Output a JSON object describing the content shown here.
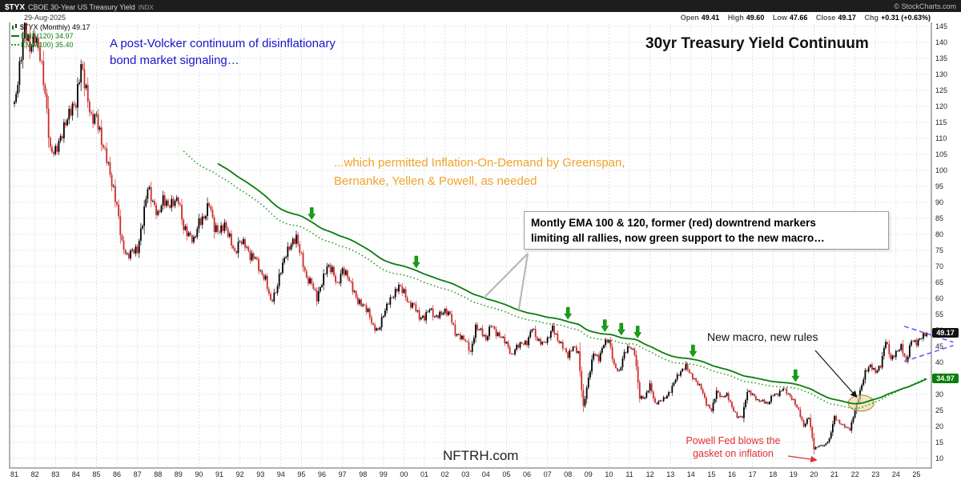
{
  "header": {
    "symbol": "$TYX",
    "symbol_desc": "CBOE 30-Year US Treasury Yield",
    "exchange": "INDX",
    "copyright": "© StockCharts.com",
    "date": "29-Aug-2025",
    "quote": {
      "open_label": "Open",
      "open": "49.41",
      "high_label": "High",
      "high": "49.60",
      "low_label": "Low",
      "low": "47.66",
      "close_label": "Close",
      "close": "49.17",
      "chg_label": "Chg",
      "chg": "+0.31 (+0.63%)"
    }
  },
  "legend": {
    "series": "$TYX (Monthly) 49.17",
    "ema120": "EMA(120) 34.97",
    "ema100": "EMA(100) 35.40"
  },
  "title": "30yr Treasury Yield Continuum",
  "annotations": {
    "blue_line1": "A post-Volcker continuum of disinflationary",
    "blue_line2": "bond market signaling…",
    "orange_line1": "...which permitted Inflation-On-Demand by Greenspan,",
    "orange_line2": "Bernanke, Yellen & Powell, as needed",
    "box_line1": "Montly EMA 100 & 120, former (red) downtrend markers",
    "box_line2": "limiting all rallies, now green support to the new macro…",
    "new_macro": "New macro, new rules",
    "powell_line1": "Powell Fed blows the",
    "powell_line2": "gasket on inflation",
    "watermark": "NFTRH.com"
  },
  "price_tags": {
    "close": "49.17",
    "ema": "34.97"
  },
  "colors": {
    "up": "#000000",
    "down": "#cc2a2a",
    "ema120": "#0b7d0b",
    "ema100": "#22a022",
    "grid": "#c9ced6",
    "border": "#666666",
    "arrow": "#14a014",
    "triangle": "#5b5be8",
    "blue_annotation": "#1616cc",
    "orange_annotation": "#efa32a",
    "red_annotation": "#e03030",
    "ellipse_fill": "#e9d8a6",
    "ellipse_stroke": "#a8862a"
  },
  "chart_data": {
    "type": "candlestick",
    "title": "30yr Treasury Yield Continuum",
    "period": "monthly",
    "note": "values are yield x 10 ($TYX index points)",
    "x_start": 1981.0,
    "x_step_years": 0.25,
    "y_axis": {
      "min": 10,
      "max": 145,
      "step": 5
    },
    "y_ticks": [
      145,
      140,
      135,
      130,
      125,
      120,
      115,
      110,
      105,
      100,
      95,
      90,
      85,
      80,
      75,
      70,
      65,
      60,
      55,
      50,
      45,
      40,
      35,
      30,
      25,
      20,
      15,
      10
    ],
    "x_ticks": [
      "81",
      "82",
      "83",
      "84",
      "85",
      "86",
      "87",
      "88",
      "89",
      "90",
      "91",
      "92",
      "93",
      "94",
      "95",
      "96",
      "97",
      "98",
      "99",
      "00",
      "01",
      "02",
      "03",
      "04",
      "05",
      "06",
      "07",
      "08",
      "09",
      "10",
      "11",
      "12",
      "13",
      "14",
      "15",
      "16",
      "17",
      "18",
      "19",
      "20",
      "21",
      "22",
      "23",
      "24",
      "25"
    ],
    "quarterly_closes": [
      120,
      132,
      145,
      138,
      142,
      136,
      124,
      106,
      106,
      110,
      115,
      119,
      121,
      133,
      125,
      116,
      117,
      109,
      104,
      96,
      89,
      77,
      73,
      75,
      75,
      84,
      95,
      90,
      86,
      91,
      89,
      90,
      91,
      82,
      80,
      78,
      84,
      85,
      90,
      82,
      81,
      83,
      79,
      74,
      78,
      77,
      73,
      73,
      68,
      66,
      59,
      62,
      69,
      74,
      77,
      79,
      73,
      66,
      65,
      60,
      65,
      70,
      69,
      64,
      69,
      67,
      63,
      59,
      58,
      56,
      51,
      50,
      55,
      59,
      61,
      64,
      62,
      58,
      58,
      54,
      54,
      57,
      54,
      55,
      56,
      55,
      49,
      48,
      47,
      43,
      51,
      50,
      47,
      52,
      49,
      48,
      46,
      42,
      45,
      46,
      46,
      51,
      47,
      46,
      47,
      51,
      47,
      45,
      42,
      45,
      43,
      26,
      35,
      43,
      41,
      46,
      47,
      39,
      37,
      43,
      45,
      43,
      29,
      29,
      33,
      27,
      28,
      29,
      31,
      35,
      37,
      39,
      36,
      34,
      32,
      27,
      25,
      31,
      29,
      30,
      26,
      23,
      23,
      31,
      30,
      28,
      28,
      27,
      30,
      30,
      32,
      30,
      28,
      25,
      20,
      23,
      13,
      14,
      14,
      16,
      23,
      21,
      20,
      19,
      25,
      31,
      37,
      39,
      37,
      39,
      47,
      41,
      43,
      45,
      40,
      47,
      46,
      48,
      49.2
    ],
    "ema": {
      "periods": [
        120,
        100
      ],
      "ema120_current": 34.97,
      "ema100_current": 35.4
    },
    "arrows_years": [
      1995.5,
      2000.6,
      2008.0,
      2009.8,
      2010.6,
      2011.4,
      2014.1,
      2019.1
    ],
    "ellipse": {
      "year": 2022.3,
      "on": "ema120"
    },
    "triangle_lines": [
      {
        "x1": 2024.4,
        "v1": 51.3,
        "x2": 2026.8,
        "v2": 46.3
      },
      {
        "x1": 2024.4,
        "v1": 40.3,
        "x2": 2026.8,
        "v2": 45.3
      }
    ],
    "callout_anchor_years": [
      2003.9,
      2005.6
    ],
    "close_value": 49.17,
    "ohlc_last": {
      "open": 49.41,
      "high": 49.6,
      "low": 47.66,
      "close": 49.17,
      "change": 0.31,
      "change_pct": 0.63
    }
  }
}
